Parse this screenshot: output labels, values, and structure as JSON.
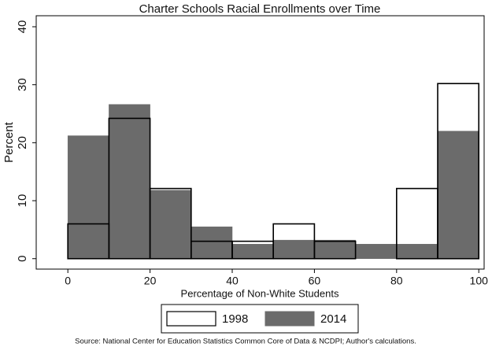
{
  "chart_data": {
    "type": "histogram",
    "title": "Charter Schools Racial Enrollments over Time",
    "x_label": "Percentage of Non-White Students",
    "y_label": "Percent",
    "source": "Source: National Center for Education Statistics Common Core of Data & NCDPI; Author's calculations.",
    "bins": [
      0,
      10,
      20,
      30,
      40,
      50,
      60,
      70,
      80,
      90,
      100
    ],
    "series": [
      {
        "name": "2014",
        "color": "#6b6b6b",
        "values": [
          21.2,
          26.6,
          11.8,
          5.5,
          2.5,
          3.2,
          3.2,
          2.5,
          2.5,
          22
        ]
      },
      {
        "name": "1998",
        "color": "#000000",
        "values": [
          6,
          24.2,
          12.1,
          3,
          3,
          6,
          3,
          0,
          12.1,
          30.2
        ]
      }
    ],
    "xlim": [
      -7.7,
      101.3
    ],
    "ylim": [
      -1.8,
      41.9
    ],
    "xticks": [
      0,
      20,
      40,
      60,
      80,
      100
    ],
    "yticks": [
      0,
      10,
      20,
      30,
      40
    ],
    "legend": "bottom"
  }
}
